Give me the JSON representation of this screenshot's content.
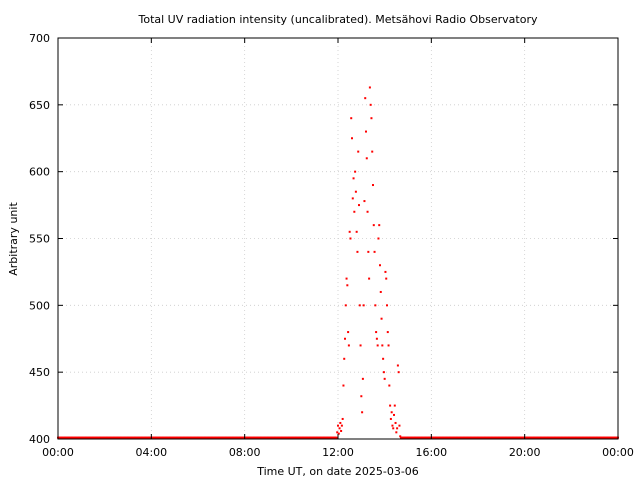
{
  "chart_data": {
    "type": "scatter",
    "title": "Total UV radiation intensity (uncalibrated). Metsähovi Radio Observatory",
    "xlabel": "Time UT, on date 2025-03-06",
    "ylabel": "Arbitrary unit",
    "xlim": [
      "00:00",
      "24:00"
    ],
    "ylim": [
      400,
      700
    ],
    "x_ticks": [
      "00:00",
      "04:00",
      "08:00",
      "12:00",
      "16:00",
      "20:00",
      "00:00"
    ],
    "y_ticks": [
      400,
      450,
      500,
      550,
      600,
      650,
      700
    ],
    "grid": true,
    "marker_color": "#ff0000",
    "baseline": {
      "value": 401,
      "from": "00:00",
      "to": "24:00"
    },
    "series": [
      {
        "points": [
          [
            "11:58",
            405
          ],
          [
            "12:00",
            410
          ],
          [
            "12:02",
            404
          ],
          [
            "12:04",
            408
          ],
          [
            "12:06",
            412
          ],
          [
            "12:08",
            406
          ],
          [
            "12:10",
            410
          ],
          [
            "12:12",
            415
          ],
          [
            "12:14",
            440
          ],
          [
            "12:16",
            460
          ],
          [
            "12:18",
            475
          ],
          [
            "12:20",
            500
          ],
          [
            "12:22",
            520
          ],
          [
            "12:24",
            515
          ],
          [
            "12:26",
            480
          ],
          [
            "12:28",
            470
          ],
          [
            "12:30",
            555
          ],
          [
            "12:32",
            550
          ],
          [
            "12:34",
            640
          ],
          [
            "12:36",
            625
          ],
          [
            "12:38",
            580
          ],
          [
            "12:40",
            595
          ],
          [
            "12:42",
            570
          ],
          [
            "12:44",
            600
          ],
          [
            "12:46",
            585
          ],
          [
            "12:48",
            555
          ],
          [
            "12:50",
            540
          ],
          [
            "12:52",
            615
          ],
          [
            "12:54",
            575
          ],
          [
            "12:56",
            500
          ],
          [
            "12:58",
            470
          ],
          [
            "13:00",
            432
          ],
          [
            "13:02",
            420
          ],
          [
            "13:04",
            445
          ],
          [
            "13:06",
            500
          ],
          [
            "13:08",
            578
          ],
          [
            "13:10",
            655
          ],
          [
            "13:12",
            630
          ],
          [
            "13:14",
            610
          ],
          [
            "13:16",
            570
          ],
          [
            "13:18",
            540
          ],
          [
            "13:20",
            520
          ],
          [
            "13:22",
            663
          ],
          [
            "13:24",
            650
          ],
          [
            "13:26",
            640
          ],
          [
            "13:28",
            615
          ],
          [
            "13:30",
            590
          ],
          [
            "13:32",
            560
          ],
          [
            "13:34",
            540
          ],
          [
            "13:36",
            500
          ],
          [
            "13:38",
            480
          ],
          [
            "13:40",
            475
          ],
          [
            "13:42",
            470
          ],
          [
            "13:44",
            550
          ],
          [
            "13:46",
            560
          ],
          [
            "13:48",
            530
          ],
          [
            "13:50",
            510
          ],
          [
            "13:52",
            490
          ],
          [
            "13:54",
            470
          ],
          [
            "13:56",
            460
          ],
          [
            "13:58",
            450
          ],
          [
            "14:00",
            445
          ],
          [
            "14:02",
            525
          ],
          [
            "14:04",
            520
          ],
          [
            "14:06",
            500
          ],
          [
            "14:08",
            480
          ],
          [
            "14:10",
            470
          ],
          [
            "14:12",
            440
          ],
          [
            "14:14",
            425
          ],
          [
            "14:16",
            415
          ],
          [
            "14:18",
            420
          ],
          [
            "14:20",
            410
          ],
          [
            "14:22",
            408
          ],
          [
            "14:24",
            418
          ],
          [
            "14:26",
            425
          ],
          [
            "14:28",
            412
          ],
          [
            "14:30",
            405
          ],
          [
            "14:32",
            408
          ],
          [
            "14:34",
            455
          ],
          [
            "14:36",
            450
          ],
          [
            "14:38",
            410
          ],
          [
            "14:40",
            402
          ]
        ]
      }
    ]
  }
}
